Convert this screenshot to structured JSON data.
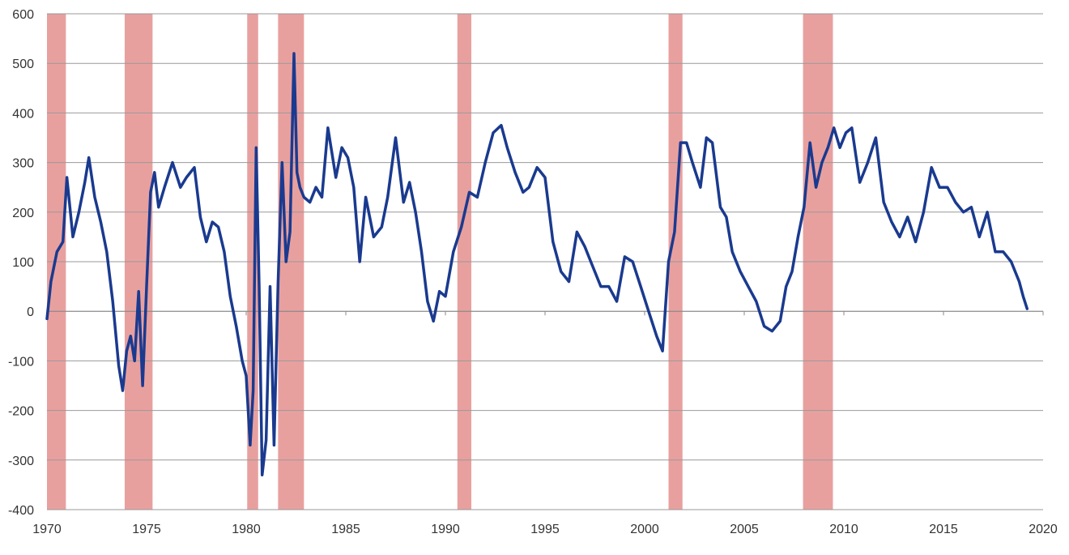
{
  "chart_data": {
    "type": "line",
    "title": "",
    "xlabel": "",
    "ylabel": "",
    "xlim": [
      1970,
      2020
    ],
    "ylim": [
      -400,
      600
    ],
    "x_ticks": [
      "1970",
      "1975",
      "1980",
      "1985",
      "1990",
      "1995",
      "2000",
      "2005",
      "2010",
      "2015",
      "2020"
    ],
    "y_ticks": [
      "600",
      "500",
      "400",
      "300",
      "200",
      "100",
      "0",
      "-100",
      "-200",
      "-300",
      "-400"
    ],
    "grid": "horizontal",
    "legend": "none",
    "colors": {
      "line": "#1a3a8f",
      "recession": "#e8a09f",
      "grid": "#999999"
    },
    "recessions": [
      {
        "start": 1970.0,
        "end": 1970.95
      },
      {
        "start": 1973.9,
        "end": 1975.3
      },
      {
        "start": 1980.05,
        "end": 1980.6
      },
      {
        "start": 1981.6,
        "end": 1982.9
      },
      {
        "start": 1990.6,
        "end": 1991.3
      },
      {
        "start": 2001.2,
        "end": 2001.9
      },
      {
        "start": 2007.95,
        "end": 2009.45
      }
    ],
    "series": [
      {
        "x": [
          1970.0,
          1970.2,
          1970.5,
          1970.8,
          1971.0,
          1971.3,
          1971.6,
          1971.9,
          1972.1,
          1972.4,
          1972.7,
          1973.0,
          1973.3,
          1973.6,
          1973.8,
          1974.0,
          1974.2,
          1974.4,
          1974.6,
          1974.8,
          1975.0,
          1975.2,
          1975.4,
          1975.6,
          1975.9,
          1976.3,
          1976.7,
          1977.0,
          1977.4,
          1977.7,
          1978.0,
          1978.3,
          1978.6,
          1978.9,
          1979.2,
          1979.5,
          1979.8,
          1980.0,
          1980.2,
          1980.35,
          1980.5,
          1980.65,
          1980.8,
          1981.0,
          1981.2,
          1981.4,
          1981.6,
          1981.8,
          1982.0,
          1982.2,
          1982.4,
          1982.55,
          1982.7,
          1982.9,
          1983.2,
          1983.5,
          1983.8,
          1984.1,
          1984.5,
          1984.8,
          1985.1,
          1985.4,
          1985.7,
          1986.0,
          1986.4,
          1986.8,
          1987.1,
          1987.5,
          1987.9,
          1988.2,
          1988.5,
          1988.8,
          1989.1,
          1989.4,
          1989.7,
          1990.0,
          1990.4,
          1990.8,
          1991.2,
          1991.6,
          1992.0,
          1992.4,
          1992.8,
          1993.1,
          1993.5,
          1993.9,
          1994.2,
          1994.6,
          1995.0,
          1995.4,
          1995.8,
          1996.2,
          1996.6,
          1997.0,
          1997.4,
          1997.8,
          1998.2,
          1998.6,
          1999.0,
          1999.4,
          1999.8,
          2000.2,
          2000.6,
          2000.9,
          2001.2,
          2001.5,
          2001.8,
          2002.1,
          2002.4,
          2002.8,
          2003.1,
          2003.4,
          2003.8,
          2004.1,
          2004.4,
          2004.8,
          2005.2,
          2005.6,
          2006.0,
          2006.4,
          2006.8,
          2007.1,
          2007.4,
          2007.7,
          2008.0,
          2008.3,
          2008.6,
          2008.9,
          2009.2,
          2009.5,
          2009.8,
          2010.1,
          2010.4,
          2010.8,
          2011.2,
          2011.6,
          2012.0,
          2012.4,
          2012.8,
          2013.2,
          2013.6,
          2014.0,
          2014.4,
          2014.8,
          2015.2,
          2015.6,
          2016.0,
          2016.4,
          2016.8,
          2017.2,
          2017.6,
          2018.0,
          2018.4,
          2018.8,
          2019.0,
          2019.2
        ],
        "y": [
          -15,
          60,
          120,
          140,
          270,
          150,
          200,
          260,
          310,
          230,
          180,
          120,
          20,
          -110,
          -160,
          -80,
          -50,
          -100,
          40,
          -150,
          50,
          240,
          280,
          210,
          250,
          300,
          250,
          270,
          290,
          190,
          140,
          180,
          170,
          120,
          30,
          -30,
          -100,
          -130,
          -270,
          -160,
          330,
          50,
          -330,
          -260,
          50,
          -270,
          60,
          300,
          100,
          160,
          520,
          280,
          250,
          230,
          220,
          250,
          230,
          370,
          270,
          330,
          310,
          250,
          100,
          230,
          150,
          170,
          230,
          350,
          220,
          260,
          200,
          120,
          20,
          -20,
          40,
          30,
          120,
          170,
          240,
          230,
          300,
          360,
          375,
          330,
          280,
          240,
          250,
          290,
          270,
          140,
          80,
          60,
          160,
          130,
          90,
          50,
          50,
          20,
          110,
          100,
          50,
          0,
          -50,
          -80,
          100,
          160,
          340,
          340,
          300,
          250,
          350,
          340,
          210,
          190,
          120,
          80,
          50,
          20,
          -30,
          -40,
          -20,
          50,
          80,
          150,
          210,
          340,
          250,
          300,
          330,
          370,
          330,
          360,
          370,
          260,
          300,
          350,
          220,
          180,
          150,
          190,
          140,
          200,
          290,
          250,
          250,
          220,
          200,
          210,
          150,
          200,
          120,
          120,
          100,
          60,
          30,
          5
        ]
      }
    ]
  }
}
